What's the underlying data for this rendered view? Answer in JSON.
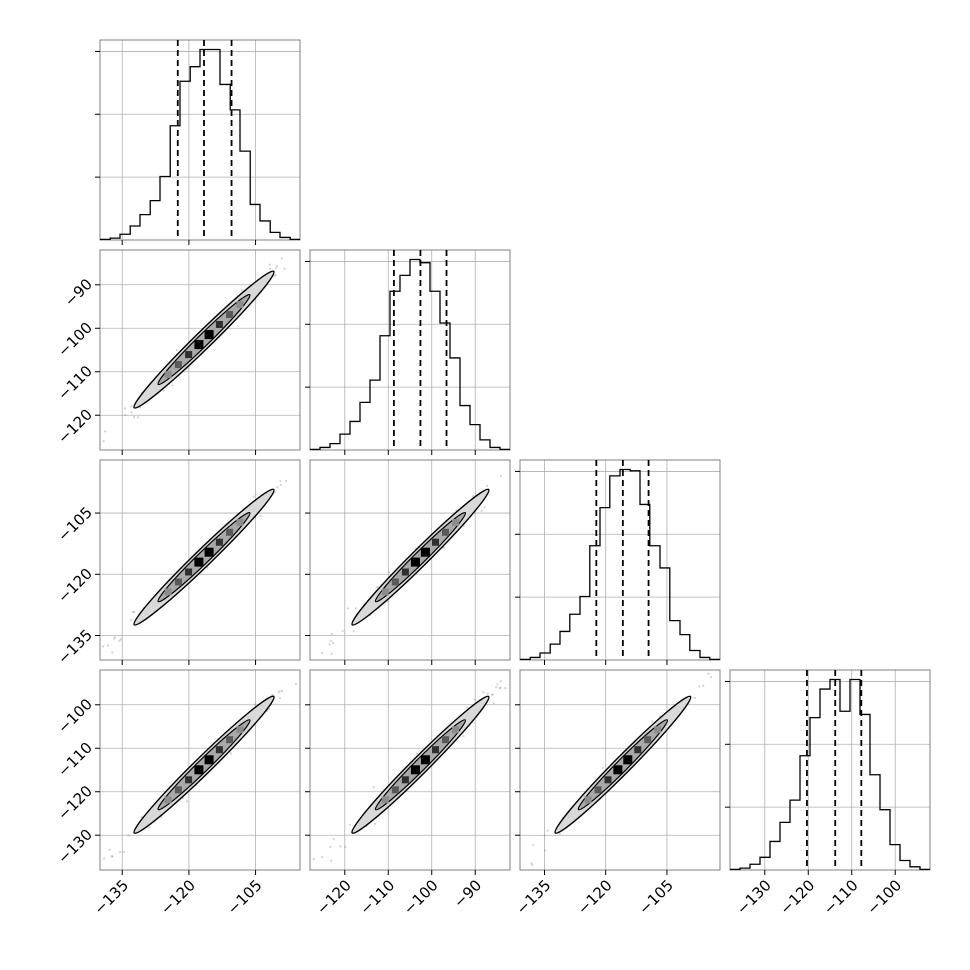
{
  "chart_data": {
    "type": "corner",
    "title": "",
    "grid": true,
    "colors": {
      "line": "#000000",
      "grid": "#b0b0b0",
      "frame": "#808080",
      "contour_fill": "#d9d9d9",
      "scatter": "#808080"
    },
    "quantiles": [
      0.16,
      0.5,
      0.84
    ],
    "parameters": [
      {
        "index": 0,
        "range": [
          -140,
          -95
        ],
        "ticks": [
          -135,
          -120,
          -105
        ],
        "tick_labels": [
          "−135",
          "−120",
          "−105"
        ]
      },
      {
        "index": 1,
        "range": [
          -128,
          -82
        ],
        "ticks": [
          -120,
          -110,
          -100,
          -90
        ],
        "tick_labels": [
          "−120",
          "−110",
          "−100",
          "−90"
        ]
      },
      {
        "index": 2,
        "range": [
          -141,
          -92
        ],
        "ticks": [
          -135,
          -120,
          -105
        ],
        "tick_labels": [
          "−135",
          "−120",
          "−105"
        ]
      },
      {
        "index": 3,
        "range": [
          -138,
          -92
        ],
        "ticks": [
          -130,
          -120,
          -110,
          -100
        ],
        "tick_labels": [
          "−130",
          "−120",
          "−110",
          "−100"
        ]
      }
    ],
    "marginals": [
      {
        "param": 0,
        "quantile_values": [
          -122.5,
          -116.6,
          -110.4
        ],
        "bin_edges": [
          -140.0,
          -137.7,
          -135.5,
          -133.2,
          -131.0,
          -128.7,
          -126.5,
          -124.2,
          -122.0,
          -119.7,
          -117.5,
          -115.2,
          -113.0,
          -110.7,
          -108.5,
          -106.2,
          -104.0,
          -101.7,
          -99.5,
          -97.2,
          -95.0
        ],
        "counts": [
          1,
          3,
          9,
          22,
          40,
          62,
          100,
          180,
          250,
          273,
          300,
          300,
          245,
          205,
          140,
          56,
          30,
          12,
          4,
          1
        ]
      },
      {
        "param": 1,
        "quantile_values": [
          -108.7,
          -102.6,
          -96.6
        ],
        "bin_edges": [
          -128.0,
          -125.7,
          -123.4,
          -121.1,
          -118.8,
          -116.5,
          -114.2,
          -111.9,
          -109.6,
          -107.3,
          -105.0,
          -102.7,
          -100.4,
          -98.1,
          -95.8,
          -93.5,
          -91.2,
          -88.9,
          -86.6,
          -84.3,
          -82.0
        ],
        "counts": [
          1,
          4,
          10,
          25,
          45,
          75,
          110,
          180,
          250,
          275,
          300,
          295,
          250,
          200,
          145,
          70,
          40,
          16,
          4,
          1
        ]
      },
      {
        "param": 2,
        "quantile_values": [
          -122.3,
          -115.8,
          -109.5
        ],
        "bin_edges": [
          -141.0,
          -138.5,
          -136.1,
          -133.6,
          -131.2,
          -128.8,
          -126.3,
          -123.9,
          -121.4,
          -119.0,
          -116.5,
          -114.0,
          -111.6,
          -109.2,
          -106.7,
          -104.3,
          -101.8,
          -99.4,
          -96.9,
          -94.5,
          -92.0
        ],
        "counts": [
          1,
          4,
          11,
          25,
          45,
          72,
          100,
          180,
          240,
          290,
          300,
          298,
          245,
          180,
          145,
          62,
          40,
          15,
          4,
          1
        ]
      },
      {
        "param": 3,
        "quantile_values": [
          -120.3,
          -113.8,
          -107.8
        ],
        "bin_edges": [
          -138.0,
          -135.7,
          -133.4,
          -131.1,
          -128.8,
          -126.5,
          -124.2,
          -121.9,
          -119.6,
          -117.3,
          -115.0,
          -112.7,
          -110.4,
          -108.1,
          -105.8,
          -103.5,
          -101.2,
          -98.9,
          -96.6,
          -94.3,
          -92.0
        ],
        "counts": [
          1,
          3,
          9,
          20,
          45,
          75,
          110,
          180,
          240,
          285,
          300,
          250,
          300,
          245,
          150,
          95,
          40,
          15,
          5,
          1
        ]
      }
    ],
    "pairs": [
      {
        "x_param": 0,
        "y_param": 1,
        "center": [
          -116.6,
          -102.6
        ],
        "sd_x": 9.0,
        "sd_y": 9.0,
        "corr": 0.985
      },
      {
        "x_param": 0,
        "y_param": 2,
        "center": [
          -116.6,
          -115.8
        ],
        "sd_x": 9.0,
        "sd_y": 9.5,
        "corr": 0.985
      },
      {
        "x_param": 1,
        "y_param": 2,
        "center": [
          -102.6,
          -115.8
        ],
        "sd_x": 9.0,
        "sd_y": 9.5,
        "corr": 0.985
      },
      {
        "x_param": 0,
        "y_param": 3,
        "center": [
          -116.6,
          -113.8
        ],
        "sd_x": 9.0,
        "sd_y": 9.0,
        "corr": 0.985
      },
      {
        "x_param": 1,
        "y_param": 3,
        "center": [
          -102.6,
          -113.8
        ],
        "sd_x": 9.0,
        "sd_y": 9.0,
        "corr": 0.985
      },
      {
        "x_param": 2,
        "y_param": 3,
        "center": [
          -115.8,
          -113.8
        ],
        "sd_x": 9.5,
        "sd_y": 9.0,
        "corr": 0.985
      }
    ]
  }
}
